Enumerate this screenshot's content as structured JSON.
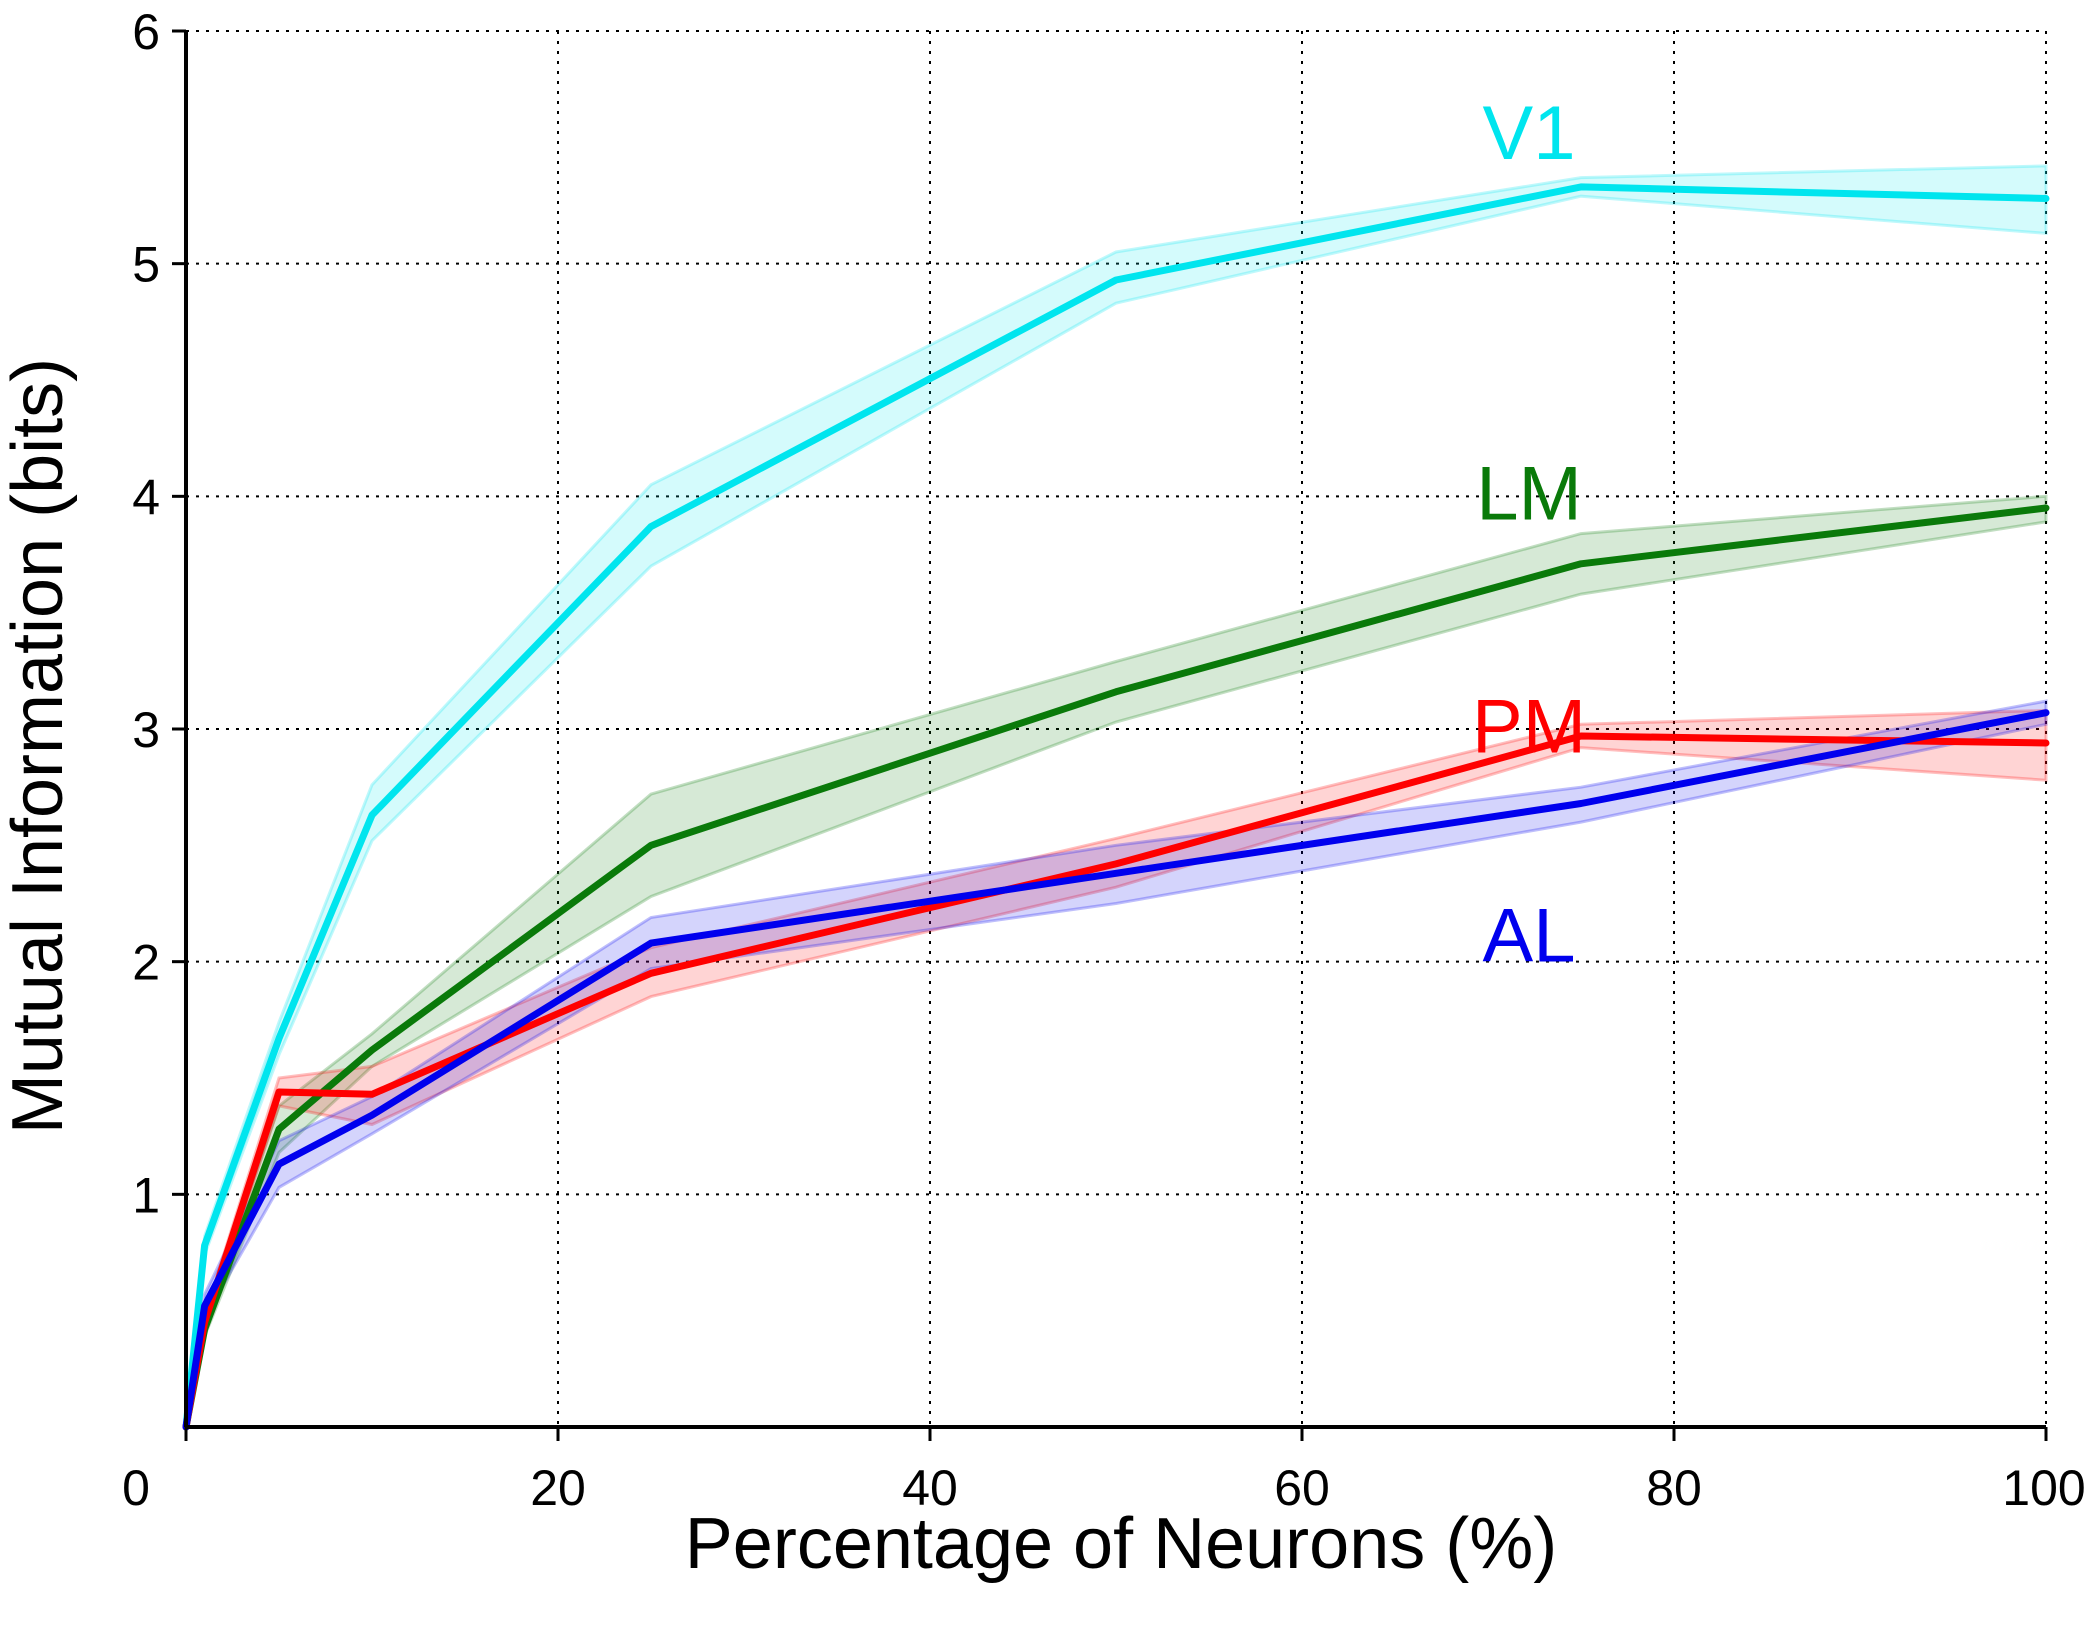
{
  "chart_data": {
    "type": "line",
    "title": "",
    "xlabel": "Percentage of Neurons (%)",
    "ylabel": "Mutual Information (bits)",
    "xlim": [
      0,
      100
    ],
    "ylim": [
      0,
      6
    ],
    "x_ticks": [
      "0",
      "20",
      "40",
      "60",
      "80",
      "100"
    ],
    "y_ticks": [
      "1",
      "2",
      "3",
      "4",
      "5",
      "6"
    ],
    "grid": true,
    "legend": "inline labels next to lines",
    "x": [
      0,
      1,
      5,
      10,
      25,
      50,
      75,
      100
    ],
    "series": [
      {
        "name": "V1",
        "color": "#00e5ee",
        "values": [
          0,
          0.78,
          1.67,
          2.63,
          3.87,
          4.93,
          5.33,
          5.28
        ],
        "lower": [
          0,
          0.74,
          1.6,
          2.52,
          3.7,
          4.83,
          5.29,
          5.13
        ],
        "upper": [
          0,
          0.82,
          1.74,
          2.76,
          4.05,
          5.05,
          5.37,
          5.42
        ]
      },
      {
        "name": "LM",
        "color": "#0a7a0a",
        "values": [
          0,
          0.42,
          1.28,
          1.62,
          2.5,
          3.16,
          3.71,
          3.95
        ],
        "lower": [
          0,
          0.39,
          1.18,
          1.55,
          2.28,
          3.03,
          3.58,
          3.89
        ],
        "upper": [
          0,
          0.45,
          1.38,
          1.69,
          2.72,
          3.29,
          3.84,
          4.0
        ]
      },
      {
        "name": "PM",
        "color": "#ff0000",
        "values": [
          0,
          0.45,
          1.44,
          1.43,
          1.95,
          2.42,
          2.97,
          2.94
        ],
        "lower": [
          0,
          0.42,
          1.38,
          1.3,
          1.85,
          2.32,
          2.92,
          2.78
        ],
        "upper": [
          0,
          0.48,
          1.5,
          1.55,
          2.06,
          2.53,
          3.02,
          3.08
        ]
      },
      {
        "name": "AL",
        "color": "#0000ee",
        "values": [
          0,
          0.52,
          1.13,
          1.34,
          2.08,
          2.38,
          2.68,
          3.07
        ],
        "lower": [
          0,
          0.47,
          1.03,
          1.26,
          1.97,
          2.25,
          2.6,
          3.02
        ],
        "upper": [
          0,
          0.57,
          1.23,
          1.42,
          2.19,
          2.5,
          2.75,
          3.12
        ]
      }
    ]
  }
}
